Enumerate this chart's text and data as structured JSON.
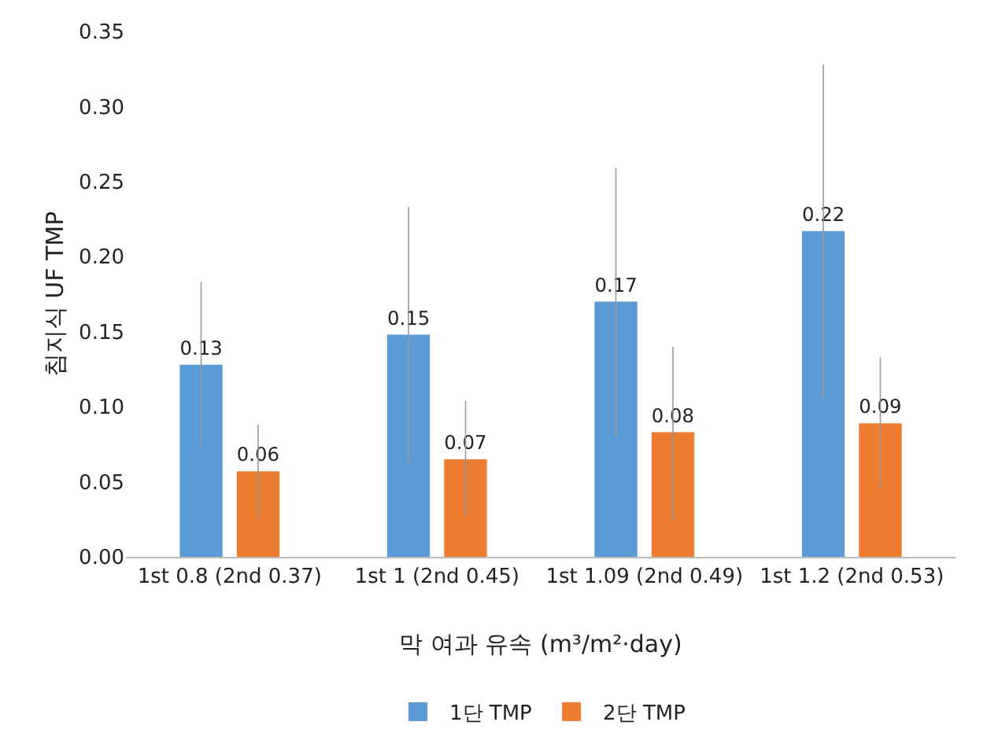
{
  "chart_data": {
    "type": "bar",
    "xlabel": "막 여과 유속 (m³/m²·day)",
    "ylabel": "침지식 UF TMP",
    "categories": [
      "1st 0.8 (2nd 0.37)",
      "1st 1 (2nd 0.45)",
      "1st 1.09 (2nd 0.49)",
      "1st 1.2 (2nd 0.53)"
    ],
    "series": [
      {
        "name": "1단 TMP",
        "color": "#5b9bd5",
        "values": [
          0.128,
          0.148,
          0.17,
          0.217
        ],
        "value_labels": [
          "0.13",
          "0.15",
          "0.17",
          "0.22"
        ],
        "errors": [
          [
            0.072,
            0.183
          ],
          [
            0.063,
            0.233
          ],
          [
            0.08,
            0.259
          ],
          [
            0.105,
            0.328
          ]
        ]
      },
      {
        "name": "2단 TMP",
        "color": "#ed7d31",
        "values": [
          0.057,
          0.065,
          0.083,
          0.089
        ],
        "value_labels": [
          "0.06",
          "0.07",
          "0.08",
          "0.09"
        ],
        "errors": [
          [
            0.026,
            0.088
          ],
          [
            0.027,
            0.104
          ],
          [
            0.024,
            0.14
          ],
          [
            0.046,
            0.133
          ]
        ]
      }
    ],
    "ylim": [
      0,
      0.35
    ],
    "yticks": [
      {
        "value": 0,
        "label": "0.00"
      },
      {
        "value": 0.05,
        "label": "0.05"
      },
      {
        "value": 0.1,
        "label": "0.10"
      },
      {
        "value": 0.15,
        "label": "0.15"
      },
      {
        "value": 0.2,
        "label": "0.20"
      },
      {
        "value": 0.25,
        "label": "0.25"
      },
      {
        "value": 0.3,
        "label": "0.30"
      },
      {
        "value": 0.35,
        "label": "0.35"
      }
    ],
    "grid": false,
    "legend": "bottom"
  }
}
